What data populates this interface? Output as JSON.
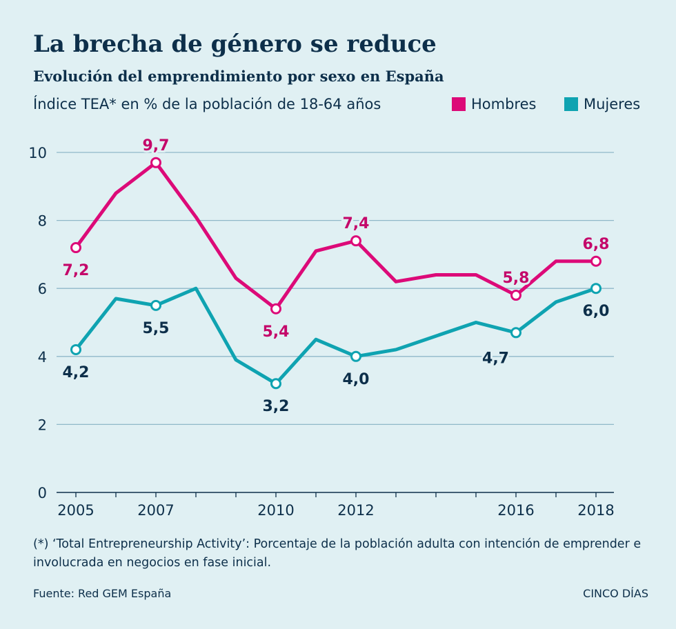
{
  "title": "La brecha de género se reduce",
  "subtitle": "Evolución del emprendimiento  por sexo en España",
  "units": "Índice TEA* en % de la población de 18-64 años",
  "footnote": "(*) ‘Total Entrepreneurship Activity’: Porcentaje de la población adulta con intención de emprender e involucrada en negocios en fase inicial.",
  "source": "Fuente: Red GEM España",
  "brand": "CINCO DÍAS",
  "chart_data": {
    "type": "line",
    "title": "La brecha de género se reduce",
    "ylabel": "Índice TEA* en % de la población de 18-64 años",
    "xlabel": "",
    "x": [
      2005,
      2006,
      2007,
      2008,
      2009,
      2010,
      2011,
      2012,
      2013,
      2014,
      2015,
      2016,
      2017,
      2018
    ],
    "x_tick_labels": [
      "2005",
      "2007",
      "2010",
      "2012",
      "2016",
      "2018"
    ],
    "x_tick_values": [
      2005,
      2007,
      2010,
      2012,
      2016,
      2018
    ],
    "y_ticks": [
      0,
      2,
      4,
      6,
      8,
      10
    ],
    "ylim": [
      0,
      10
    ],
    "series": [
      {
        "name": "Hombres",
        "color": "#dc0a78",
        "values": [
          7.2,
          8.8,
          9.7,
          8.1,
          6.3,
          5.4,
          7.1,
          7.4,
          6.2,
          6.4,
          6.4,
          5.8,
          6.8,
          6.8
        ],
        "markers": [
          2005,
          2007,
          2010,
          2012,
          2016,
          2018
        ],
        "labels": [
          {
            "x": 2005,
            "text": "7,2",
            "pos": "below"
          },
          {
            "x": 2007,
            "text": "9,7",
            "pos": "above"
          },
          {
            "x": 2010,
            "text": "5,4",
            "pos": "below"
          },
          {
            "x": 2012,
            "text": "7,4",
            "pos": "above"
          },
          {
            "x": 2016,
            "text": "5,8",
            "pos": "above"
          },
          {
            "x": 2018,
            "text": "6,8",
            "pos": "above"
          }
        ]
      },
      {
        "name": "Mujeres",
        "color": "#0fa3b1",
        "values": [
          4.2,
          5.7,
          5.5,
          6.0,
          3.9,
          3.2,
          4.5,
          4.0,
          4.2,
          4.6,
          5.0,
          4.7,
          5.6,
          6.0
        ],
        "markers": [
          2005,
          2007,
          2010,
          2012,
          2016,
          2018
        ],
        "labels": [
          {
            "x": 2005,
            "text": "4,2",
            "pos": "below"
          },
          {
            "x": 2007,
            "text": "5,5",
            "pos": "below"
          },
          {
            "x": 2010,
            "text": "3,2",
            "pos": "below"
          },
          {
            "x": 2012,
            "text": "4,0",
            "pos": "below"
          },
          {
            "x": 2016,
            "text": "4,7",
            "pos": "below-left"
          },
          {
            "x": 2018,
            "text": "6,0",
            "pos": "below"
          }
        ]
      }
    ]
  }
}
